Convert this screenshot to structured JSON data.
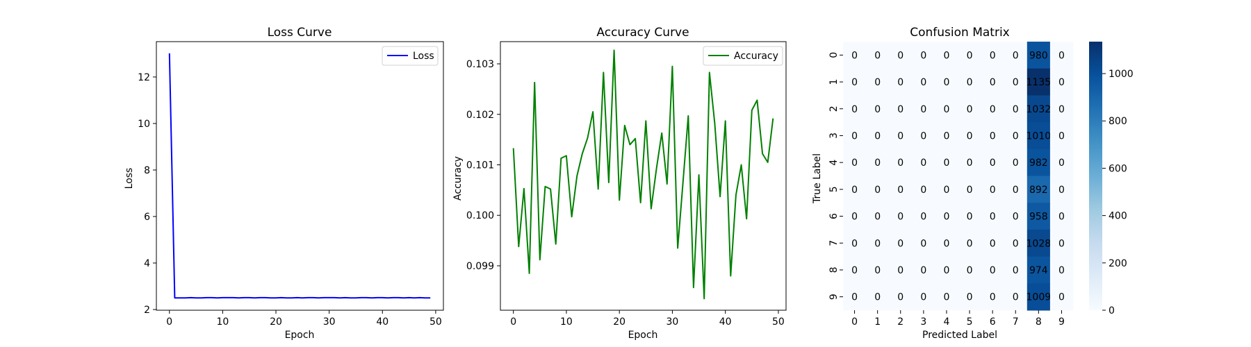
{
  "chart_data": [
    {
      "type": "line",
      "title": "Loss Curve",
      "xlabel": "Epoch",
      "ylabel": "Loss",
      "xlim": [
        -2.45,
        51.45
      ],
      "ylim": [
        1.97,
        13.52
      ],
      "xticks": [
        0,
        10,
        20,
        30,
        40,
        50
      ],
      "yticks": [
        2,
        4,
        6,
        8,
        10,
        12
      ],
      "legend": "top-right",
      "grid": false,
      "series": [
        {
          "name": "Loss",
          "color": "#0000ff",
          "x": [
            0,
            1,
            2,
            3,
            4,
            5,
            6,
            7,
            8,
            9,
            10,
            11,
            12,
            13,
            14,
            15,
            16,
            17,
            18,
            19,
            20,
            21,
            22,
            23,
            24,
            25,
            26,
            27,
            28,
            29,
            30,
            31,
            32,
            33,
            34,
            35,
            36,
            37,
            38,
            39,
            40,
            41,
            42,
            43,
            44,
            45,
            46,
            47,
            48,
            49
          ],
          "values": [
            13.02,
            2.5,
            2.5,
            2.5,
            2.51,
            2.5,
            2.5,
            2.51,
            2.51,
            2.5,
            2.51,
            2.51,
            2.51,
            2.5,
            2.51,
            2.51,
            2.5,
            2.51,
            2.51,
            2.5,
            2.5,
            2.51,
            2.5,
            2.5,
            2.51,
            2.5,
            2.51,
            2.51,
            2.5,
            2.51,
            2.51,
            2.51,
            2.5,
            2.51,
            2.5,
            2.5,
            2.51,
            2.51,
            2.5,
            2.51,
            2.51,
            2.5,
            2.51,
            2.51,
            2.5,
            2.51,
            2.5,
            2.51,
            2.5,
            2.5
          ]
        }
      ]
    },
    {
      "type": "line",
      "title": "Accuracy Curve",
      "xlabel": "Epoch",
      "ylabel": "Accuracy",
      "xlim": [
        -2.45,
        51.45
      ],
      "ylim": [
        0.09812,
        0.10344
      ],
      "xticks": [
        0,
        10,
        20,
        30,
        40,
        50
      ],
      "yticks": [
        0.099,
        0.1,
        0.101,
        0.102,
        0.103
      ],
      "ytick_labels": [
        "0.099",
        "0.100",
        "0.101",
        "0.102",
        "0.103"
      ],
      "legend": "top-right",
      "grid": false,
      "series": [
        {
          "name": "Accuracy",
          "color": "#008000",
          "x": [
            0,
            1,
            2,
            3,
            4,
            5,
            6,
            7,
            8,
            9,
            10,
            11,
            12,
            13,
            14,
            15,
            16,
            17,
            18,
            19,
            20,
            21,
            22,
            23,
            24,
            25,
            26,
            27,
            28,
            29,
            30,
            31,
            32,
            33,
            34,
            35,
            36,
            37,
            38,
            39,
            40,
            41,
            42,
            43,
            44,
            45,
            46,
            47,
            48,
            49
          ],
          "values": [
            0.10133,
            0.09938,
            0.10053,
            0.09885,
            0.10263,
            0.09912,
            0.10057,
            0.10052,
            0.09943,
            0.10113,
            0.10118,
            0.09997,
            0.10078,
            0.10122,
            0.10153,
            0.10205,
            0.10052,
            0.10283,
            0.10065,
            0.10327,
            0.1003,
            0.10178,
            0.1014,
            0.10152,
            0.10025,
            0.10187,
            0.10013,
            0.10093,
            0.10163,
            0.10062,
            0.10295,
            0.09935,
            0.10065,
            0.10197,
            0.09857,
            0.1008,
            0.09835,
            0.10283,
            0.10182,
            0.10037,
            0.10187,
            0.0988,
            0.1004,
            0.101,
            0.09993,
            0.10208,
            0.10228,
            0.10122,
            0.10105,
            0.10192
          ]
        }
      ]
    },
    {
      "type": "heatmap",
      "title": "Confusion Matrix",
      "xlabel": "Predicted Label",
      "ylabel": "True Label",
      "categories": [
        "0",
        "1",
        "2",
        "3",
        "4",
        "5",
        "6",
        "7",
        "8",
        "9"
      ],
      "matrix": [
        [
          0,
          0,
          0,
          0,
          0,
          0,
          0,
          0,
          980,
          0
        ],
        [
          0,
          0,
          0,
          0,
          0,
          0,
          0,
          0,
          1135,
          0
        ],
        [
          0,
          0,
          0,
          0,
          0,
          0,
          0,
          0,
          1032,
          0
        ],
        [
          0,
          0,
          0,
          0,
          0,
          0,
          0,
          0,
          1010,
          0
        ],
        [
          0,
          0,
          0,
          0,
          0,
          0,
          0,
          0,
          982,
          0
        ],
        [
          0,
          0,
          0,
          0,
          0,
          0,
          0,
          0,
          892,
          0
        ],
        [
          0,
          0,
          0,
          0,
          0,
          0,
          0,
          0,
          958,
          0
        ],
        [
          0,
          0,
          0,
          0,
          0,
          0,
          0,
          0,
          1028,
          0
        ],
        [
          0,
          0,
          0,
          0,
          0,
          0,
          0,
          0,
          974,
          0
        ],
        [
          0,
          0,
          0,
          0,
          0,
          0,
          0,
          0,
          1009,
          0
        ]
      ],
      "colorbar": {
        "min": 0,
        "max": 1135,
        "ticks": [
          0,
          200,
          400,
          600,
          800,
          1000
        ]
      },
      "colormap": "Blues"
    }
  ]
}
